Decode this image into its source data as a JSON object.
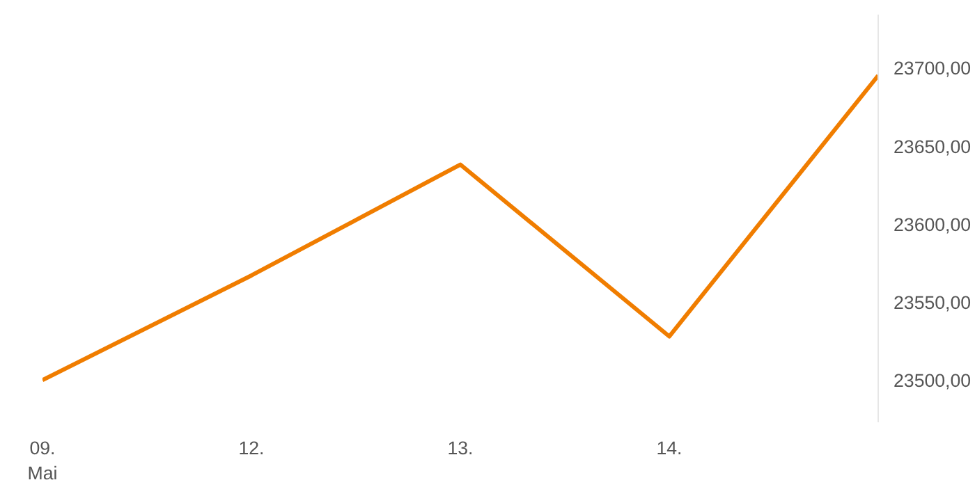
{
  "chart_data": {
    "type": "line",
    "categories": [
      "09.\nMai",
      "12.",
      "13.",
      "14.",
      null
    ],
    "series": [
      {
        "color": "#f07d00",
        "values": [
          23500,
          23567,
          23638,
          23528,
          23695
        ]
      }
    ],
    "ylim": [
      23473,
      23734
    ],
    "yticks": [
      {
        "value": 23500,
        "label": "23500,00"
      },
      {
        "value": 23550,
        "label": "23550,00"
      },
      {
        "value": 23600,
        "label": "23600,00"
      },
      {
        "value": 23650,
        "label": "23650,00"
      },
      {
        "value": 23700,
        "label": "23700,00"
      }
    ],
    "grid": false,
    "marker": "none",
    "line_style": "solid"
  }
}
